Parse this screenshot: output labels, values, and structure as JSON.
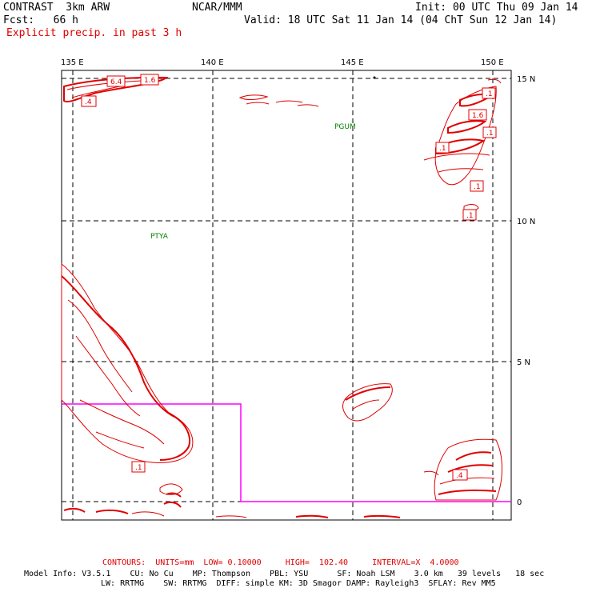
{
  "header": {
    "model": "CONTRAST  3km ARW",
    "org": "NCAR/MMM",
    "init": "Init: 00 UTC Thu 09 Jan 14",
    "fcst": "Fcst:   66 h",
    "valid": "Valid: 18 UTC Sat 11 Jan 14 (04 ChT Sun 12 Jan 14)",
    "field": "Explicit precip. in past 3 h"
  },
  "map": {
    "lon_labels": [
      "135 E",
      "140 E",
      "145 E",
      "150 E"
    ],
    "lat_labels": [
      "15 N",
      "10 N",
      "5 N",
      "0"
    ],
    "stations": [
      "PGUM",
      "PTYA"
    ],
    "contour_labels": [
      "6.4",
      "1.6",
      ".4",
      ".1",
      "1.6",
      ".1",
      ".1",
      ".1",
      ".1",
      ".4",
      ".1"
    ],
    "colors": {
      "contour": "#e00000",
      "station": "#008000",
      "domain_box": "#ff00ff",
      "grid": "#000000"
    }
  },
  "footer": {
    "contours": "CONTOURS:  UNITS=mm  LOW= 0.10000     HIGH=  102.40     INTERVAL=X  4.0000",
    "model_info_1": "Model Info: V3.5.1    CU: No Cu    MP: Thompson    PBL: YSU      SF: Noah LSM    3.0 km   39 levels   18 sec",
    "model_info_2": "LW: RRTMG    SW: RRTMG  DIFF: simple KM: 3D Smagor DAMP: Rayleigh3  SFLAY: Rev MM5"
  }
}
